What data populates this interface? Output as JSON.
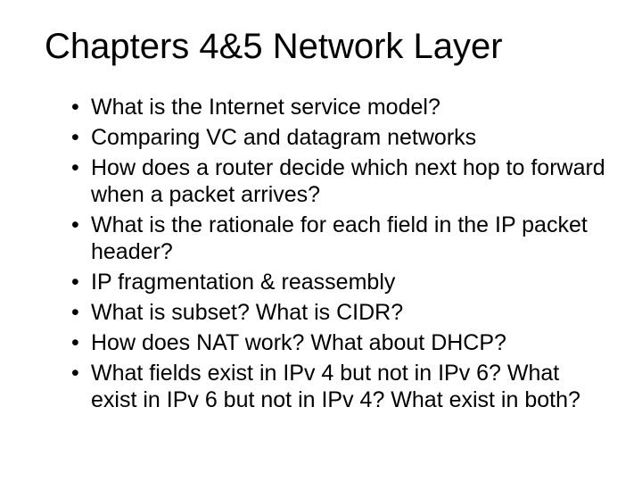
{
  "slide": {
    "title": "Chapters 4&5  Network Layer",
    "title_fontsize": 40,
    "title_color": "#000000",
    "bullet_fontsize": 25,
    "bullet_color": "#000000",
    "background_color": "#ffffff",
    "font_family": "Arial",
    "bullets": [
      "What is the Internet service model?",
      "Comparing VC and datagram networks",
      "How does a router decide which next hop to forward when a packet arrives?",
      "What is the rationale for each field in the IP packet header?",
      "IP fragmentation & reassembly",
      "What is subset? What is CIDR?",
      "How does NAT work? What about DHCP?",
      "What fields exist in IPv 4 but not in IPv 6? What exist in IPv 6 but not in IPv 4? What exist in both?"
    ]
  }
}
